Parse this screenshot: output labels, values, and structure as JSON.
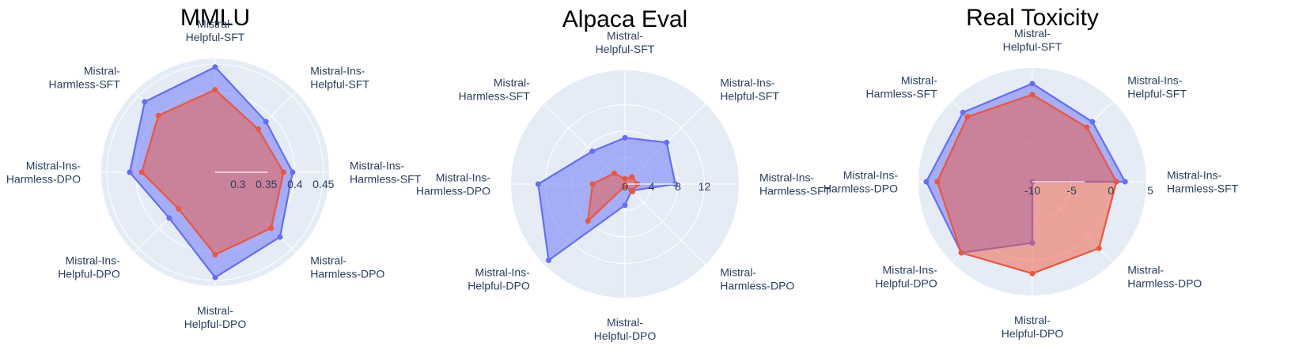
{
  "colors": {
    "polar_bg": "#e5ecf6",
    "grid": "#ffffff",
    "series_blue": "#636efa",
    "series_red": "#ef553b",
    "text": "#2a3f5f"
  },
  "chart_data": [
    {
      "type": "radar",
      "title": "MMLU",
      "axes": [
        "Mistral-Helpful-SFT",
        "Mistral-Ins-Helpful-SFT",
        "Mistral-Ins-Harmless-SFT",
        "Mistral-Harmless-DPO",
        "Mistral-Helpful-DPO",
        "Mistral-Ins-Helpful-DPO",
        "Mistral-Ins-Harmless-DPO",
        "Mistral-Harmless-SFT"
      ],
      "axis_label_lines": [
        [
          "Mistral-",
          "Helpful-SFT"
        ],
        [
          "Mistral-Ins-",
          "Helpful-SFT"
        ],
        [
          "Mistral-Ins-",
          "Harmless-SFT"
        ],
        [
          "Mistral-",
          "Harmless-DPO"
        ],
        [
          "Mistral-",
          "Helpful-DPO"
        ],
        [
          "Mistral-Ins-",
          "Helpful-DPO"
        ],
        [
          "Mistral-Ins-",
          "Harmless-DPO"
        ],
        [
          "Mistral-",
          "Harmless-SFT"
        ]
      ],
      "radial_range": [
        0.26,
        0.46
      ],
      "radial_ticks": [
        0.3,
        0.35,
        0.4,
        0.45
      ],
      "radial_tick_labels": [
        "0.3",
        "0.35",
        "0.4",
        "0.45"
      ],
      "series": [
        {
          "color": "blue",
          "values": [
            0.445,
            0.386,
            0.396,
            0.421,
            0.445,
            0.374,
            0.41,
            0.435
          ]
        },
        {
          "color": "red",
          "values": [
            0.405,
            0.367,
            0.38,
            0.399,
            0.405,
            0.351,
            0.389,
            0.401
          ]
        }
      ]
    },
    {
      "type": "radar",
      "title": "Alpaca Eval",
      "axes": [
        "Mistral-Helpful-SFT",
        "Mistral-Ins-Helpful-SFT",
        "Mistral-Ins-Harmless-SFT",
        "Mistral-Harmless-DPO",
        "Mistral-Helpful-DPO",
        "Mistral-Ins-Helpful-DPO",
        "Mistral-Ins-Harmless-DPO",
        "Mistral-Harmless-SFT"
      ],
      "axis_label_lines": [
        [
          "Mistral-",
          "Helpful-SFT"
        ],
        [
          "Mistral-Ins-",
          "Helpful-SFT"
        ],
        [
          "Mistral-Ins-",
          "Harmless-SFT"
        ],
        [
          "Mistral-",
          "Harmless-DPO"
        ],
        [
          "Mistral-",
          "Helpful-DPO"
        ],
        [
          "Mistral-Ins-",
          "Helpful-DPO"
        ],
        [
          "Mistral-Ins-",
          "Harmless-DPO"
        ],
        [
          "Mistral-",
          "Harmless-SFT"
        ]
      ],
      "radial_range": [
        0,
        17.2
      ],
      "radial_ticks": [
        0,
        4,
        8,
        12
      ],
      "radial_tick_labels": [
        "0",
        "4",
        "8",
        "12"
      ],
      "series": [
        {
          "color": "blue",
          "values": [
            7.0,
            8.9,
            7.6,
            1.4,
            3.2,
            16.3,
            13.1,
            7.0
          ]
        },
        {
          "color": "red",
          "values": [
            0.8,
            1.5,
            1.9,
            1.6,
            0.3,
            7.9,
            4.9,
            2.3
          ]
        }
      ]
    },
    {
      "type": "radar",
      "title": "Real Toxicity",
      "axes": [
        "Mistral-Helpful-SFT",
        "Mistral-Ins-Helpful-SFT",
        "Mistral-Ins-Harmless-SFT",
        "Mistral-Harmless-DPO",
        "Mistral-Helpful-DPO",
        "Mistral-Ins-Helpful-DPO",
        "Mistral-Ins-Harmless-DPO",
        "Mistral-Harmless-SFT"
      ],
      "axis_label_lines": [
        [
          "Mistral-",
          "Helpful-SFT"
        ],
        [
          "Mistral-Ins-",
          "Helpful-SFT"
        ],
        [
          "Mistral-Ins-",
          "Harmless-SFT"
        ],
        [
          "Mistral-",
          "Harmless-DPO"
        ],
        [
          "Mistral-",
          "Helpful-DPO"
        ],
        [
          "Mistral-Ins-",
          "Helpful-DPO"
        ],
        [
          "Mistral-Ins-",
          "Harmless-DPO"
        ],
        [
          "Mistral-",
          "Harmless-SFT"
        ]
      ],
      "radial_range": [
        -10,
        4.5
      ],
      "radial_ticks": [
        -10,
        -5,
        0,
        5
      ],
      "radial_tick_labels": [
        "-10",
        "-5",
        "0",
        "5"
      ],
      "series": [
        {
          "color": "blue",
          "values": [
            2.5,
            0.8,
            1.8,
            -10,
            -2.2,
            2.8,
            3.5,
            2.5
          ]
        },
        {
          "color": "red",
          "values": [
            1.1,
            -0.2,
            0.7,
            2.0,
            1.7,
            2.8,
            2.1,
            1.7
          ]
        }
      ]
    }
  ]
}
